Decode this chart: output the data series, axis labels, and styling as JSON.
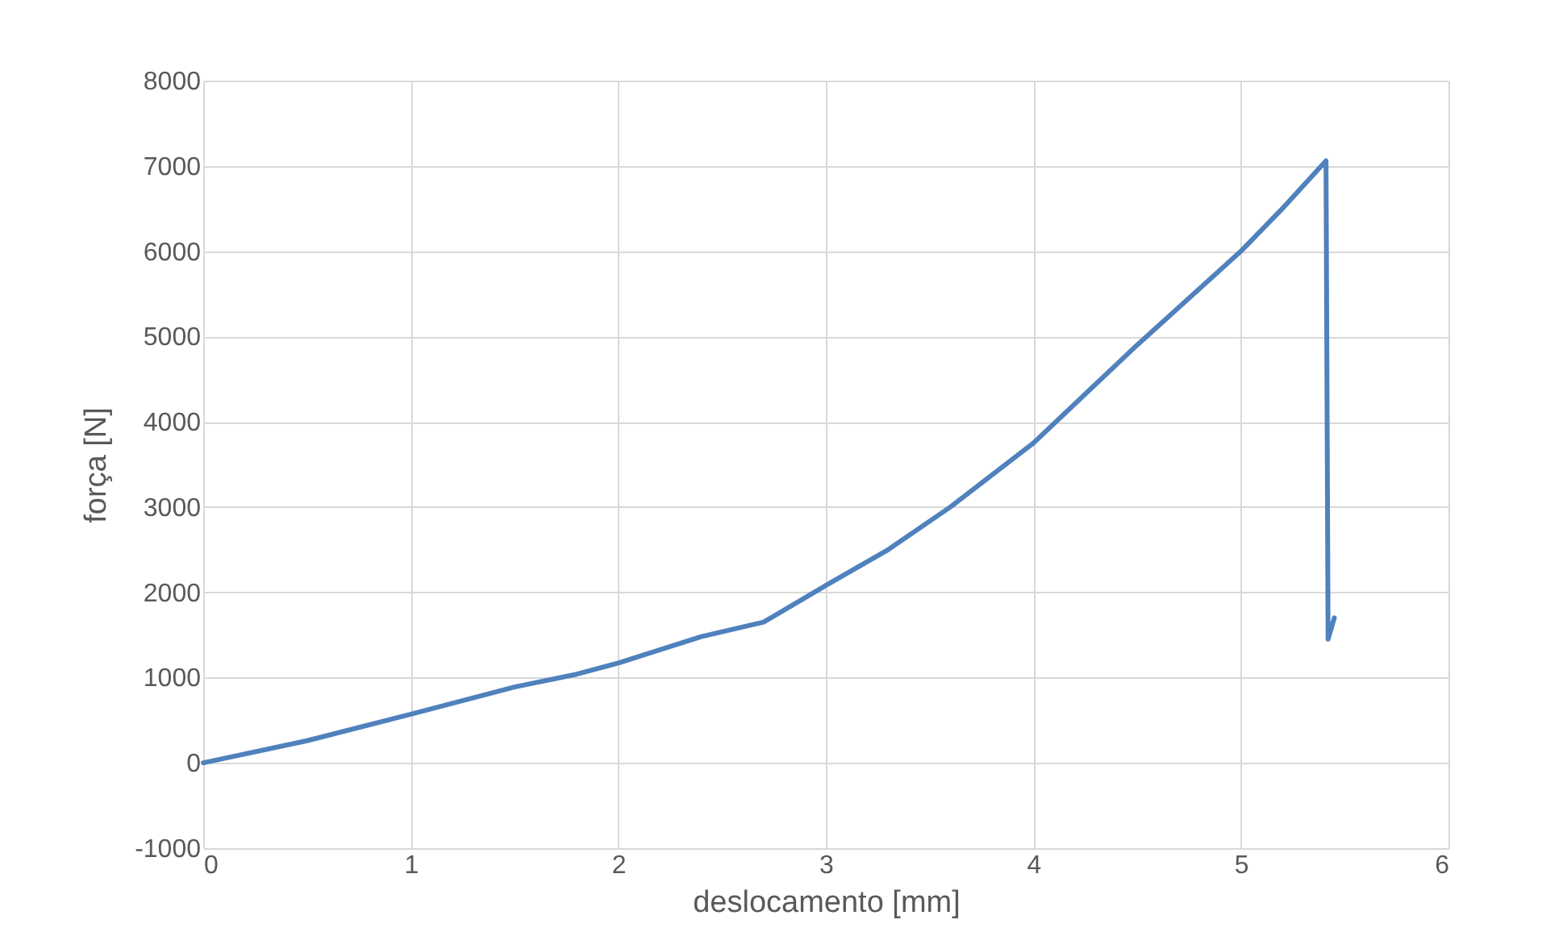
{
  "chart_data": {
    "type": "line",
    "xlabel": "deslocamento [mm]",
    "ylabel": "força [N]",
    "x": [
      0,
      0.5,
      1,
      1.5,
      1.8,
      2,
      2.4,
      2.7,
      3,
      3.3,
      3.6,
      4,
      4.5,
      5,
      5.2,
      5.41,
      5.42,
      5.45
    ],
    "series": [
      {
        "color": "#4f81bd",
        "values": [
          0,
          260,
          570,
          890,
          1040,
          1170,
          1480,
          1650,
          2080,
          2500,
          3000,
          3750,
          4900,
          6000,
          6500,
          7060,
          1450,
          1700
        ]
      }
    ],
    "xlim": [
      0,
      6
    ],
    "xticks": [
      0,
      1,
      2,
      3,
      4,
      5,
      6
    ],
    "ylim": [
      -1000,
      8000
    ],
    "yticks": [
      -1000,
      0,
      1000,
      2000,
      3000,
      4000,
      5000,
      6000,
      7000,
      8000
    ],
    "grid": true,
    "marker": "none",
    "line_style": "solid"
  }
}
